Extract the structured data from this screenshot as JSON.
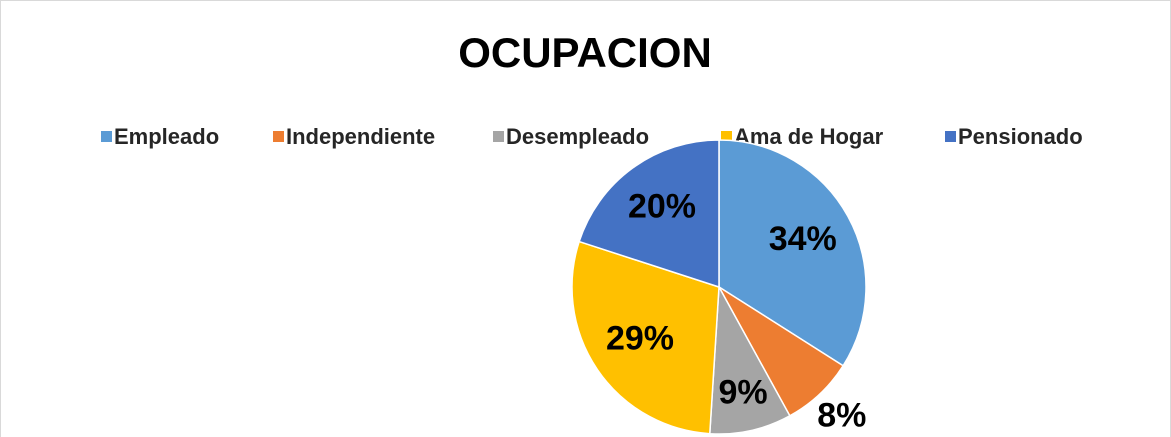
{
  "chart_data": {
    "type": "pie",
    "title": "OCUPACION",
    "categories": [
      "Empleado",
      "Independiente",
      "Desempleado",
      "Ama de Hogar",
      "Pensionado"
    ],
    "values": [
      34,
      8,
      9,
      29,
      20
    ],
    "value_labels": [
      "34%",
      "8%",
      "9%",
      "29%",
      "20%"
    ],
    "colors": [
      "#5b9bd5",
      "#ed7d31",
      "#a5a5a5",
      "#ffc000",
      "#4472c4"
    ],
    "legend": "top"
  }
}
